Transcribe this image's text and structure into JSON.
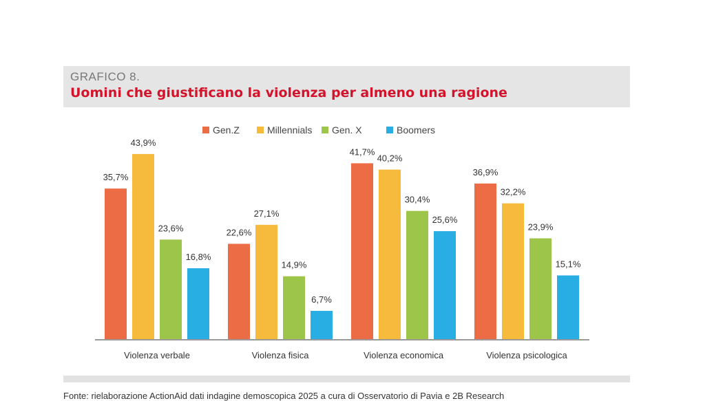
{
  "header": {
    "kicker": "GRAFICO 8.",
    "title": "Uomini che giustificano la violenza per almeno una ragione"
  },
  "source": "Fonte: rielaborazione ActionAid dati indagine demoscopica 2025 a cura di Osservatorio di Pavia e 2B Research",
  "chart_data": {
    "type": "bar",
    "title": "Uomini che giustificano la violenza per almeno una ragione",
    "categories": [
      "Violenza verbale",
      "Violenza fisica",
      "Violenza economica",
      "Violenza psicologica"
    ],
    "series": [
      {
        "name": "Gen.Z",
        "color": "#ec6c45",
        "values": [
          35.7,
          22.6,
          41.7,
          36.9
        ],
        "labels": [
          "35,7%",
          "22,6%",
          "41,7%",
          "36,9%"
        ]
      },
      {
        "name": "Millennials",
        "color": "#f6bb3c",
        "values": [
          43.9,
          27.1,
          40.2,
          32.2
        ],
        "labels": [
          "43,9%",
          "27,1%",
          "40,2%",
          "32,2%"
        ]
      },
      {
        "name": "Gen. X",
        "color": "#9dc54a",
        "values": [
          23.6,
          14.9,
          30.4,
          23.9
        ],
        "labels": [
          "23,6%",
          "14,9%",
          "30,4%",
          "23,9%"
        ]
      },
      {
        "name": "Boomers",
        "color": "#29aee3",
        "values": [
          16.8,
          6.7,
          25.6,
          15.1
        ],
        "labels": [
          "16,8%",
          "6,7%",
          "25,6%",
          "15,1%"
        ]
      }
    ],
    "legend": "top-center",
    "grid": false,
    "ylim": [
      0,
      45
    ]
  }
}
